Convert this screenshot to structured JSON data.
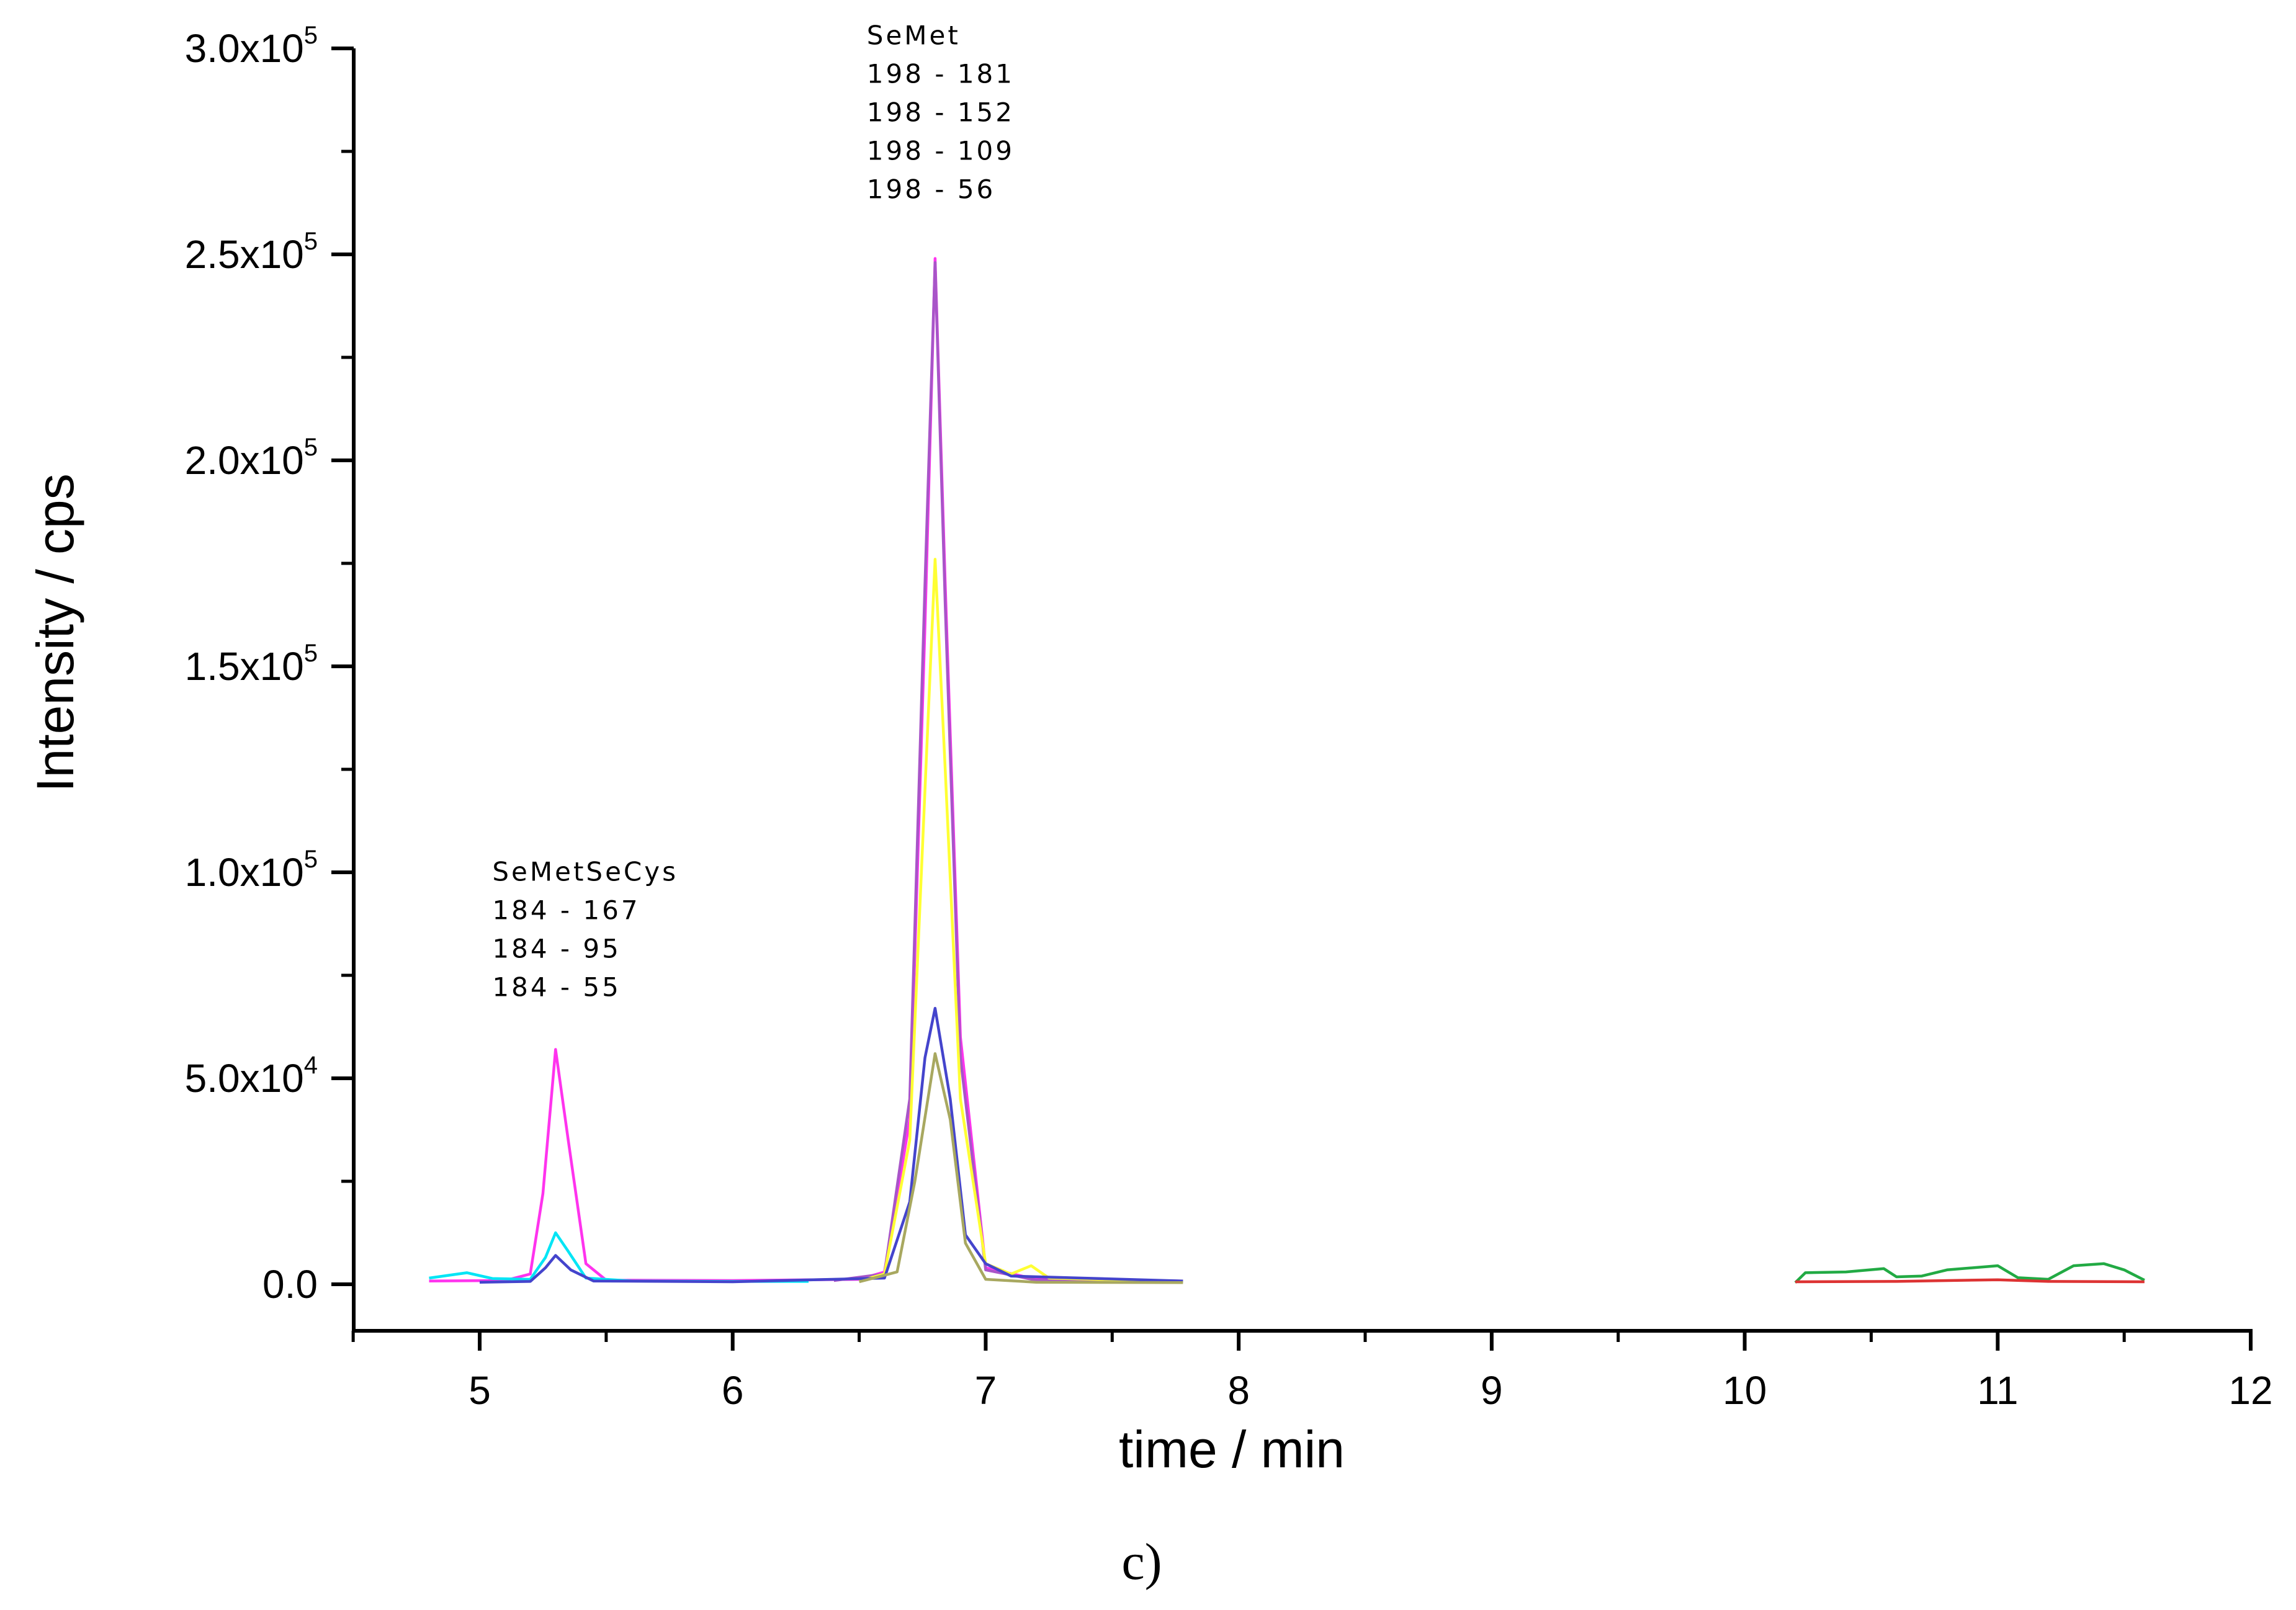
{
  "chart_data": {
    "type": "line",
    "xlabel": "time / min",
    "ylabel": "Intensity / cps",
    "xlim": [
      4.5,
      12
    ],
    "ylim": [
      0,
      300000
    ],
    "xticks": [
      5,
      6,
      7,
      8,
      9,
      10,
      11,
      12
    ],
    "yticks": [
      0,
      50000,
      100000,
      150000,
      200000,
      250000,
      300000
    ],
    "ytick_labels": [
      {
        "value": 0,
        "mantissa": "0.0",
        "exp": ""
      },
      {
        "value": 50000,
        "mantissa": "5.0x10",
        "exp": "4"
      },
      {
        "value": 100000,
        "mantissa": "1.0x10",
        "exp": "5"
      },
      {
        "value": 150000,
        "mantissa": "1.5x10",
        "exp": "5"
      },
      {
        "value": 200000,
        "mantissa": "2.0x10",
        "exp": "5"
      },
      {
        "value": 250000,
        "mantissa": "2.5x10",
        "exp": "5"
      },
      {
        "value": 300000,
        "mantissa": "3.0x10",
        "exp": "5"
      }
    ],
    "annotations": [
      {
        "anchor_x": 5.05,
        "anchor_y": 98000,
        "lines": [
          "SeMetSeCys",
          "184 - 167",
          "184 - 95",
          "184 - 55"
        ]
      },
      {
        "anchor_x": 6.53,
        "anchor_y": 301000,
        "lines": [
          "SeMet",
          "198 - 181",
          "198 - 152",
          "198 - 109",
          "198 - 56"
        ]
      }
    ],
    "caption": "c)",
    "series": [
      {
        "color": "#ff33ee",
        "points": [
          [
            4.8,
            800
          ],
          [
            5.1,
            900
          ],
          [
            5.2,
            2500
          ],
          [
            5.25,
            22000
          ],
          [
            5.3,
            57000
          ],
          [
            5.35,
            35000
          ],
          [
            5.42,
            5000
          ],
          [
            5.5,
            1000
          ],
          [
            6.0,
            900
          ],
          [
            6.5,
            1200
          ],
          [
            6.6,
            3000
          ],
          [
            6.7,
            40000
          ],
          [
            6.76,
            160000
          ],
          [
            6.8,
            249000
          ],
          [
            6.84,
            170000
          ],
          [
            6.9,
            60000
          ],
          [
            7.0,
            4000
          ],
          [
            7.2,
            1200
          ],
          [
            7.78,
            800
          ]
        ]
      },
      {
        "color": "#a855c8",
        "points": [
          [
            6.4,
            900
          ],
          [
            6.6,
            2500
          ],
          [
            6.7,
            45000
          ],
          [
            6.76,
            170000
          ],
          [
            6.8,
            248000
          ],
          [
            6.84,
            165000
          ],
          [
            6.9,
            55000
          ],
          [
            7.0,
            3500
          ],
          [
            7.2,
            1000
          ],
          [
            7.78,
            800
          ]
        ]
      },
      {
        "color": "#ffff33",
        "points": [
          [
            6.5,
            800
          ],
          [
            6.6,
            2500
          ],
          [
            6.7,
            35000
          ],
          [
            6.76,
            120000
          ],
          [
            6.8,
            176000
          ],
          [
            6.84,
            125000
          ],
          [
            6.9,
            45000
          ],
          [
            7.0,
            5000
          ],
          [
            7.1,
            2500
          ],
          [
            7.18,
            4500
          ],
          [
            7.25,
            1500
          ],
          [
            7.78,
            600
          ]
        ]
      },
      {
        "color": "#00e5f5",
        "points": [
          [
            4.8,
            1500
          ],
          [
            4.95,
            2800
          ],
          [
            5.05,
            1400
          ],
          [
            5.2,
            1200
          ],
          [
            5.26,
            6500
          ],
          [
            5.3,
            12500
          ],
          [
            5.35,
            8000
          ],
          [
            5.42,
            1500
          ],
          [
            5.6,
            800
          ],
          [
            6.0,
            700
          ],
          [
            6.3,
            700
          ]
        ]
      },
      {
        "color": "#4444cc",
        "points": [
          [
            5.0,
            500
          ],
          [
            5.2,
            700
          ],
          [
            5.26,
            4000
          ],
          [
            5.3,
            7000
          ],
          [
            5.36,
            3500
          ],
          [
            5.45,
            800
          ],
          [
            6.0,
            600
          ],
          [
            6.6,
            1500
          ],
          [
            6.7,
            20000
          ],
          [
            6.76,
            55000
          ],
          [
            6.8,
            67000
          ],
          [
            6.86,
            45000
          ],
          [
            6.92,
            12000
          ],
          [
            7.0,
            5000
          ],
          [
            7.1,
            2000
          ],
          [
            7.78,
            800
          ]
        ]
      },
      {
        "color": "#a8a860",
        "points": [
          [
            6.5,
            600
          ],
          [
            6.65,
            3000
          ],
          [
            6.72,
            25000
          ],
          [
            6.8,
            56000
          ],
          [
            6.86,
            40000
          ],
          [
            6.92,
            10000
          ],
          [
            7.0,
            1200
          ],
          [
            7.2,
            500
          ],
          [
            7.78,
            400
          ]
        ]
      },
      {
        "color": "#22aa44",
        "points": [
          [
            10.2,
            400
          ],
          [
            10.24,
            2800
          ],
          [
            10.4,
            3000
          ],
          [
            10.55,
            3800
          ],
          [
            10.6,
            1800
          ],
          [
            10.7,
            2000
          ],
          [
            10.8,
            3500
          ],
          [
            11.0,
            4500
          ],
          [
            11.08,
            1600
          ],
          [
            11.2,
            1200
          ],
          [
            11.3,
            4500
          ],
          [
            11.42,
            5000
          ],
          [
            11.5,
            3500
          ],
          [
            11.58,
            1000
          ]
        ]
      },
      {
        "color": "#dd3333",
        "points": [
          [
            10.2,
            600
          ],
          [
            10.6,
            700
          ],
          [
            11.0,
            1100
          ],
          [
            11.2,
            700
          ],
          [
            11.58,
            600
          ]
        ]
      }
    ]
  }
}
